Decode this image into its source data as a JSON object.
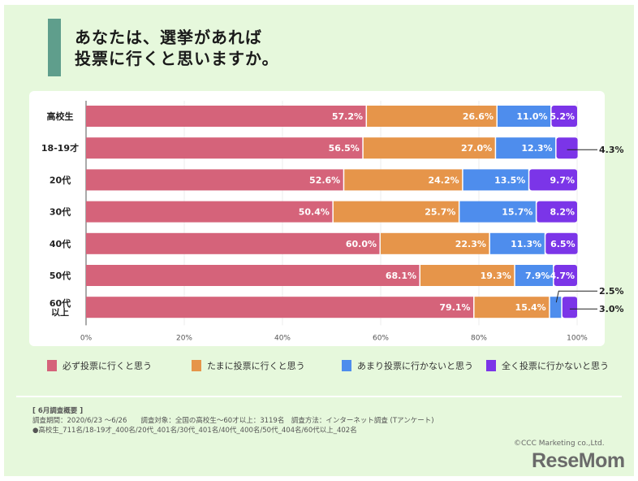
{
  "header": {
    "title_line1": "あなたは、選挙があれば",
    "title_line2": "投票に行くと思いますか。"
  },
  "chart_data": {
    "type": "bar",
    "orientation": "horizontal",
    "stacked": true,
    "title": "あなたは、選挙があれば投票に行くと思いますか。",
    "xlabel": "",
    "ylabel": "",
    "xlim": [
      0,
      100
    ],
    "x_ticks": [
      "0%",
      "20%",
      "40%",
      "60%",
      "80%",
      "100%"
    ],
    "grid": true,
    "legend_position": "bottom",
    "categories": [
      "高校生",
      "18-19才",
      "20代",
      "30代",
      "40代",
      "50代",
      "60代以上"
    ],
    "category_lines": [
      [
        "高校生"
      ],
      [
        "18-19才"
      ],
      [
        "20代"
      ],
      [
        "30代"
      ],
      [
        "40代"
      ],
      [
        "50代"
      ],
      [
        "60代",
        "以上"
      ]
    ],
    "series": [
      {
        "name": "必ず投票に行くと思う",
        "color": "#d5637a",
        "values": [
          57.2,
          56.5,
          52.6,
          50.4,
          60.0,
          68.1,
          79.1
        ]
      },
      {
        "name": "たまに投票に行くと思う",
        "color": "#e6954a",
        "values": [
          26.6,
          27.0,
          24.2,
          25.7,
          22.3,
          19.3,
          15.4
        ]
      },
      {
        "name": "あまり投票に行かないと思う",
        "color": "#4e8ded",
        "values": [
          11.0,
          12.3,
          13.5,
          15.7,
          11.3,
          7.9,
          2.5
        ]
      },
      {
        "name": "全く投票に行かないと思う",
        "color": "#7b35e8",
        "values": [
          5.2,
          4.3,
          9.7,
          8.2,
          6.5,
          4.7,
          3.0
        ]
      }
    ],
    "callouts": [
      {
        "category": "18-19才",
        "series": "全く投票に行かないと思う",
        "label": "4.3%"
      },
      {
        "category": "60代以上",
        "series": "あまり投票に行かないと思う",
        "label": "2.5%"
      },
      {
        "category": "60代以上",
        "series": "全く投票に行かないと思う",
        "label": "3.0%"
      }
    ]
  },
  "notes": {
    "heading": "[ 6月調査概要 ]",
    "line1": "調査期間：2020/6/23 ～6/26　　調査対象：全国の高校生～60才以上：3119名　調査方法：インターネット調査 (Tアンケート)",
    "line2": "●高校生_711名/18-19才_400名/20代_401名/30代_401名/40代_400名/50代_404名/60代以上_402名"
  },
  "footer": {
    "copyright": "©CCC Marketing co.,Ltd.",
    "logo": "ReseMom"
  }
}
